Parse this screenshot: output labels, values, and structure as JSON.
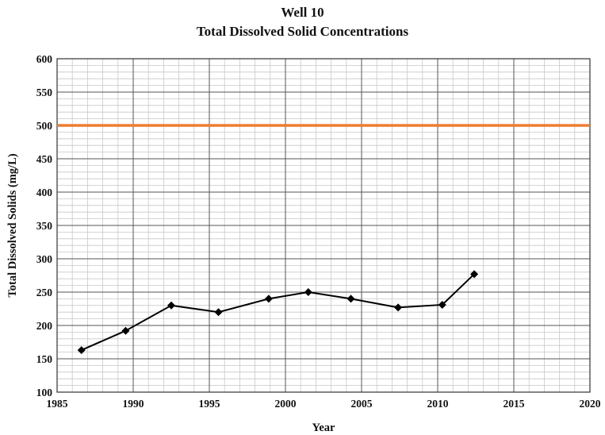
{
  "chart_data": {
    "type": "line",
    "title": "Well 10",
    "subtitle": "Total Dissolved Solid Concentrations",
    "xlabel": "Year",
    "ylabel": "Total Dissolved Solids (mg/L)",
    "xlim": [
      1985,
      2020
    ],
    "ylim": [
      100,
      600
    ],
    "x_ticks": [
      1985,
      1990,
      1995,
      2000,
      2005,
      2010,
      2015,
      2020
    ],
    "y_ticks": [
      100,
      150,
      200,
      250,
      300,
      350,
      400,
      450,
      500,
      550,
      600
    ],
    "grid": true,
    "legend": "none",
    "reference_line": {
      "y": 500,
      "color": "#ed7d31"
    },
    "series": [
      {
        "color": "#000000",
        "marker": "diamond",
        "points": [
          {
            "x": 1986.6,
            "y": 163
          },
          {
            "x": 1989.5,
            "y": 192
          },
          {
            "x": 1992.5,
            "y": 230
          },
          {
            "x": 1995.6,
            "y": 220
          },
          {
            "x": 1998.9,
            "y": 240
          },
          {
            "x": 2001.5,
            "y": 250
          },
          {
            "x": 2004.3,
            "y": 240
          },
          {
            "x": 2007.4,
            "y": 227
          },
          {
            "x": 2010.3,
            "y": 231
          },
          {
            "x": 2012.4,
            "y": 277
          }
        ]
      }
    ]
  }
}
